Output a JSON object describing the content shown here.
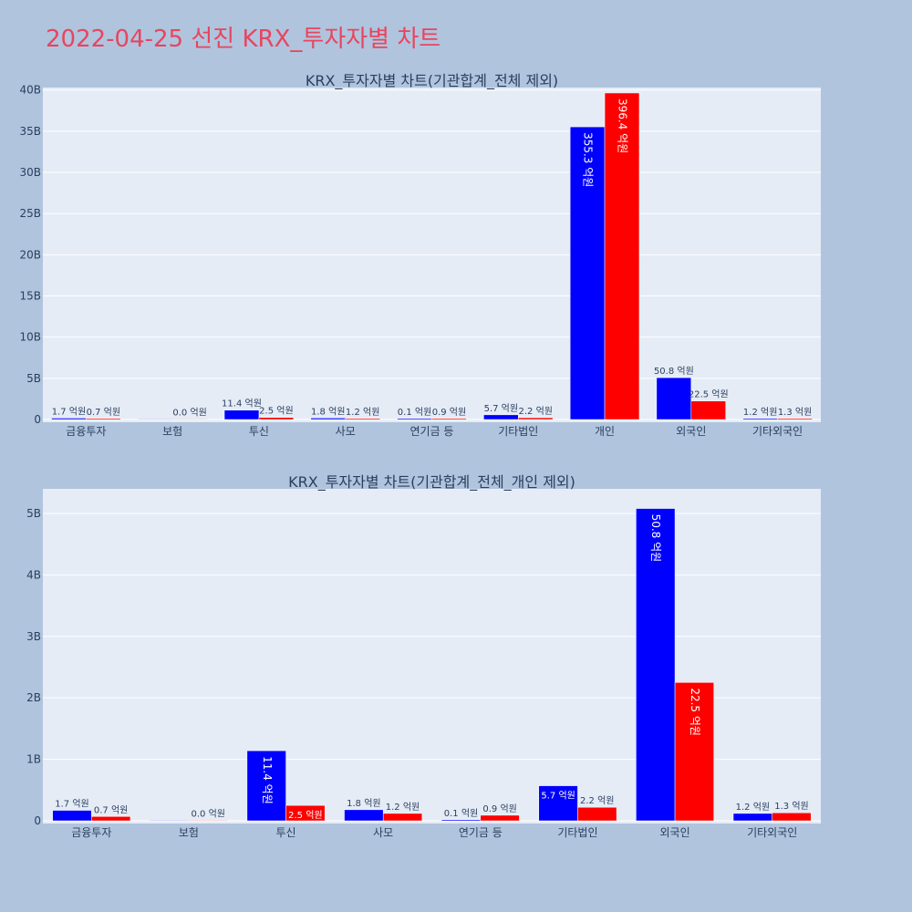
{
  "page": {
    "title": "2022-04-25 선진 KRX_투자자별 차트"
  },
  "colors": {
    "background": "#b0c4de",
    "plot_bg": "#e5ecf6",
    "title": "#e8455e",
    "series_a": "#0000ff",
    "series_b": "#ff0000",
    "text": "#2a3f5f"
  },
  "chart_data": [
    {
      "type": "bar",
      "title": "KRX_투자자별 차트(기관합계_전체 제외)",
      "categories": [
        "금융투자",
        "보험",
        "투신",
        "사모",
        "연기금 등",
        "기타법인",
        "개인",
        "외국인",
        "기타외국인"
      ],
      "series": [
        {
          "color": "#0000ff",
          "values": [
            0.17,
            0.0,
            1.14,
            0.18,
            0.01,
            0.57,
            35.53,
            5.08,
            0.12
          ],
          "labels": [
            "1.7 억원",
            "",
            "11.4 억원",
            "1.8 억원",
            "0.1 억원",
            "5.7 억원",
            "355.3 억원",
            "50.8 억원",
            "1.2 억원"
          ]
        },
        {
          "color": "#ff0000",
          "values": [
            0.07,
            0.0,
            0.25,
            0.12,
            0.09,
            0.22,
            39.64,
            2.25,
            0.13
          ],
          "labels": [
            "0.7 억원",
            "0.0 억원",
            "2.5 억원",
            "1.2 억원",
            "0.9 억원",
            "2.2 억원",
            "396.4 억원",
            "22.5 억원",
            "1.3 억원"
          ]
        }
      ],
      "ylim": [
        0,
        40.3
      ],
      "yticks": [
        0,
        5,
        10,
        15,
        20,
        25,
        30,
        35,
        40
      ],
      "ytick_labels": [
        "0",
        "5B",
        "10B",
        "15B",
        "20B",
        "25B",
        "30B",
        "35B",
        "40B"
      ],
      "grid": true
    },
    {
      "type": "bar",
      "title": "KRX_투자자별 차트(기관합계_전체_개인 제외)",
      "categories": [
        "금융투자",
        "보험",
        "투신",
        "사모",
        "연기금 등",
        "기타법인",
        "외국인",
        "기타외국인"
      ],
      "series": [
        {
          "color": "#0000ff",
          "values": [
            0.17,
            0.0,
            1.14,
            0.18,
            0.01,
            0.57,
            5.08,
            0.12
          ],
          "labels": [
            "1.7 억원",
            "",
            "11.4 억원",
            "1.8 억원",
            "0.1 억원",
            "5.7 억원",
            "50.8 억원",
            "1.2 억원"
          ]
        },
        {
          "color": "#ff0000",
          "values": [
            0.07,
            0.0,
            0.25,
            0.12,
            0.09,
            0.22,
            2.25,
            0.13
          ],
          "labels": [
            "0.7 억원",
            "0.0 억원",
            "2.5 억원",
            "1.2 억원",
            "0.9 억원",
            "2.2 억원",
            "22.5 억원",
            "1.3 억원"
          ]
        }
      ],
      "ylim": [
        0,
        5.4
      ],
      "yticks": [
        0,
        1,
        2,
        3,
        4,
        5
      ],
      "ytick_labels": [
        "0",
        "1B",
        "2B",
        "3B",
        "4B",
        "5B"
      ],
      "grid": true
    }
  ]
}
